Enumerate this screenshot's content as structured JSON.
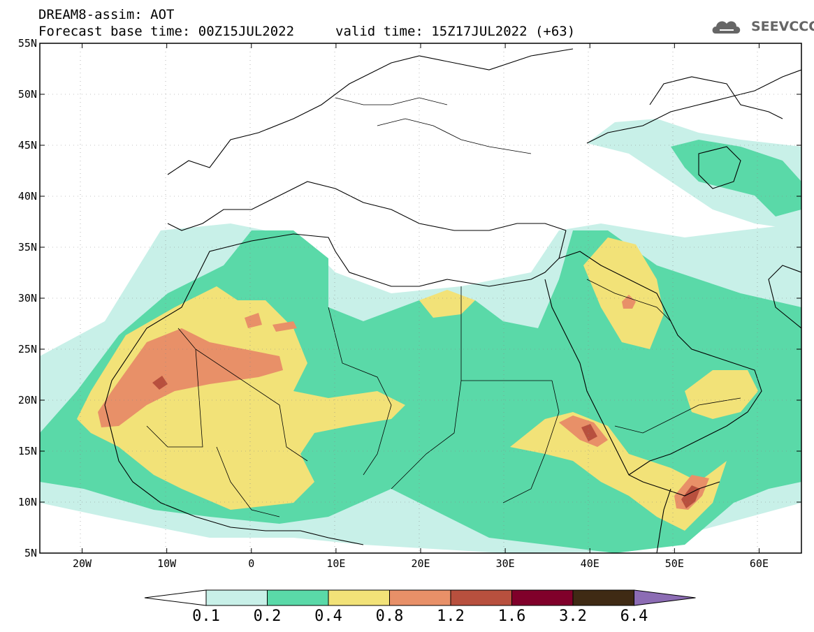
{
  "header": {
    "title": "DREAM8-assim: AOT",
    "base_time": "Forecast base time: 00Z15JUL2022",
    "valid_time": "valid time: 15Z17JUL2022 (+63)"
  },
  "logo": {
    "text": "SEEVCCC",
    "icon": "cloud-icon"
  },
  "map": {
    "lat_labels": [
      "55N",
      "50N",
      "45N",
      "40N",
      "35N",
      "30N",
      "25N",
      "20N",
      "15N",
      "10N",
      "5N"
    ],
    "lon_labels": [
      "20W",
      "10W",
      "0",
      "10E",
      "20E",
      "30E",
      "40E",
      "50E",
      "60E"
    ],
    "lon_range": [
      -25,
      65
    ],
    "lat_range": [
      5,
      55
    ]
  },
  "colorbar": {
    "labels": [
      "0.1",
      "0.2",
      "0.4",
      "0.8",
      "1.2",
      "1.6",
      "3.2",
      "6.4"
    ],
    "colors": [
      "#c8f0e8",
      "#5ad9a8",
      "#f2e278",
      "#e89068",
      "#b8503e",
      "#80002a",
      "#3f2a14",
      "#8c6cb4"
    ],
    "lower_extend_color": "#ffffff"
  }
}
